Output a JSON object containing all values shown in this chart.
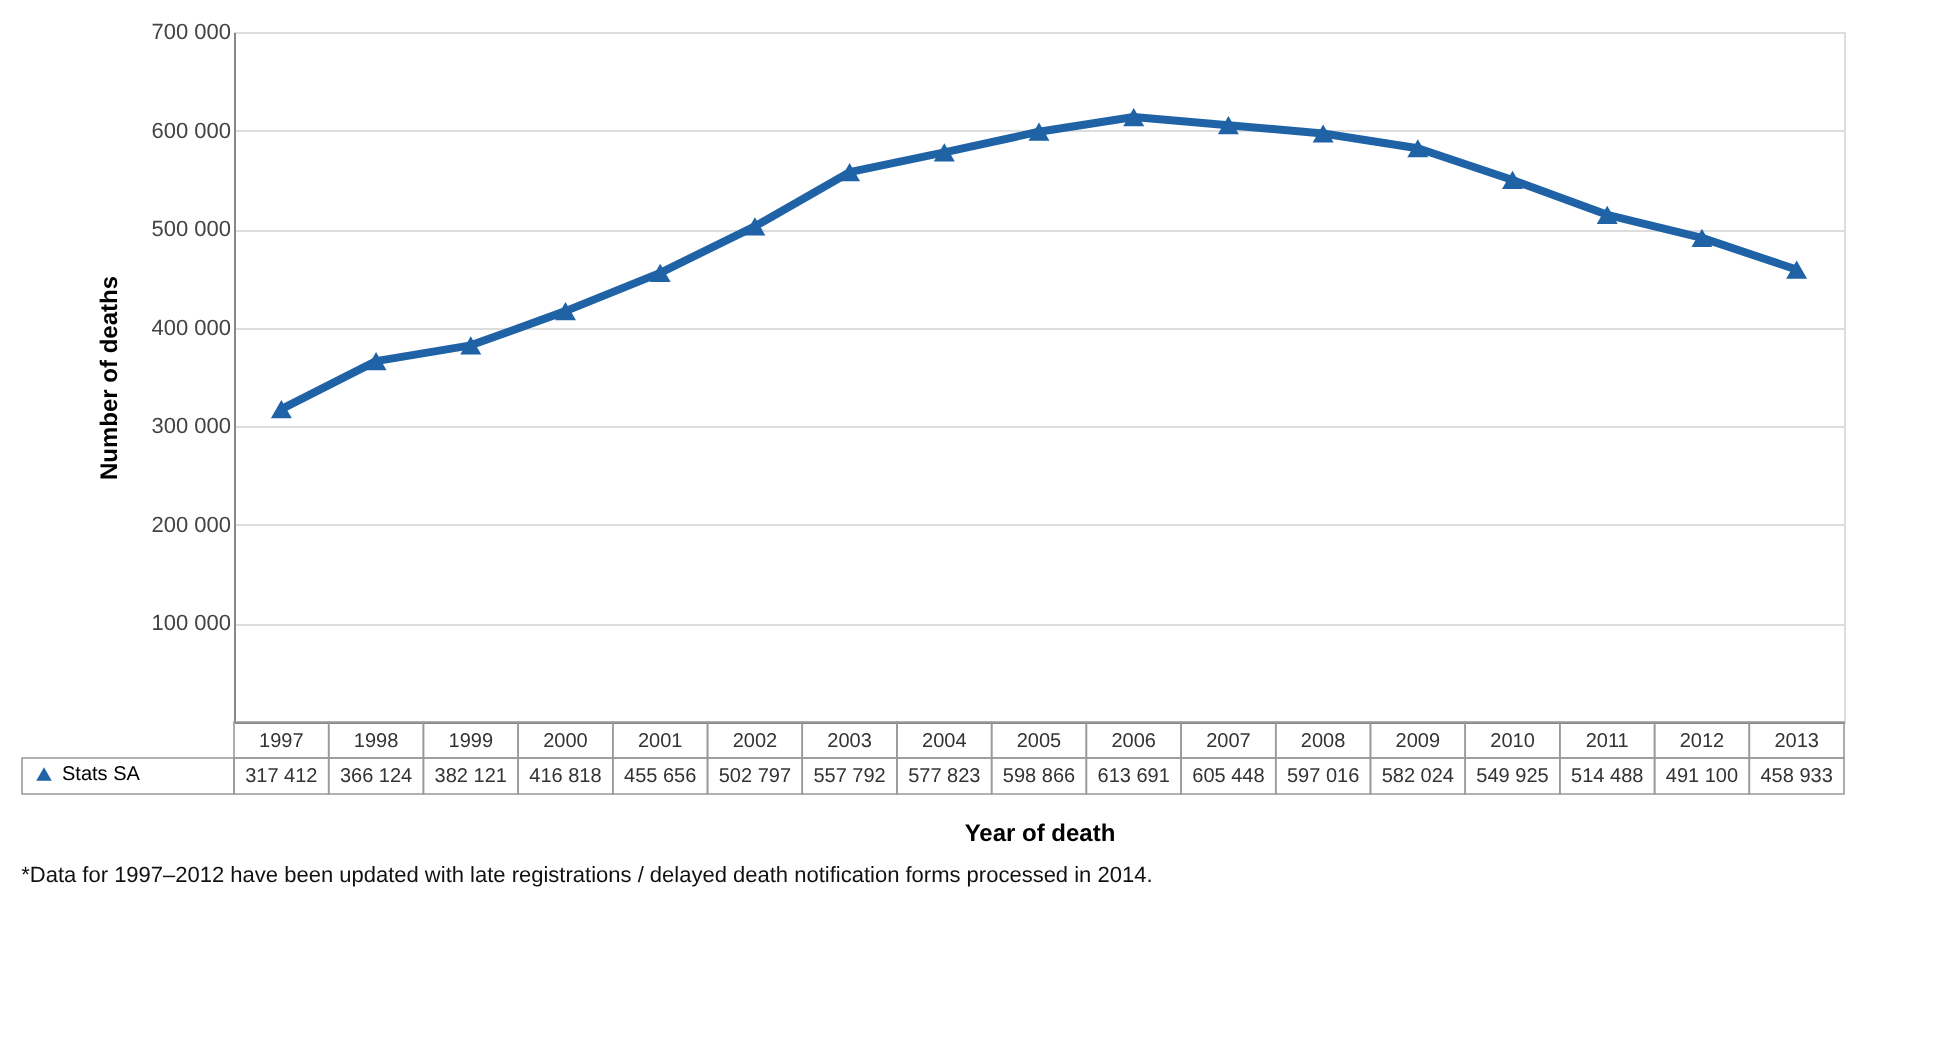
{
  "chart_data": {
    "type": "line",
    "ylabel": "Number of deaths",
    "xlabel": "Year of death",
    "categories": [
      "1997",
      "1998",
      "1999",
      "2000",
      "2001",
      "2002",
      "2003",
      "2004",
      "2005",
      "2006",
      "2007",
      "2008",
      "2009",
      "2010",
      "2011",
      "2012",
      "2013"
    ],
    "series": [
      {
        "name": "Stats SA",
        "color": "#1f63a6",
        "values": [
          317412,
          366124,
          382121,
          416818,
          455656,
          502797,
          557792,
          577823,
          598866,
          613691,
          605448,
          597016,
          582024,
          549925,
          514488,
          491100,
          458933
        ]
      }
    ],
    "ylim": [
      0,
      700000
    ],
    "yticks": [
      100000,
      200000,
      300000,
      400000,
      500000,
      600000,
      700000
    ],
    "grid": "y",
    "marker": "triangle",
    "line_style": "solid",
    "legend": "bottom left",
    "data_labels": true,
    "annotations": [
      "*Data for 1997–2012 have been updated with late registrations / delayed death notification forms processed in 2014."
    ]
  }
}
